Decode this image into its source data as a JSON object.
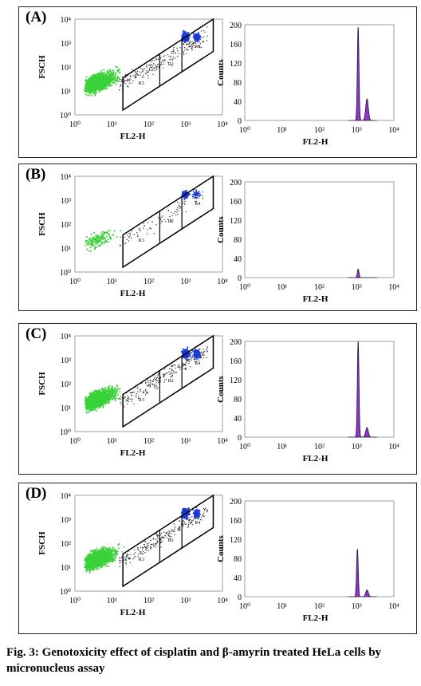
{
  "caption": "Fig. 3: Genotoxicity effect of cisplatin and β-amyrin treated HeLa cells by micronucleus assay",
  "colors": {
    "green": "#3ad13a",
    "blue": "#1a3ad6",
    "black_dots": "#333333",
    "histogram_fill": "#8a38c8",
    "histogram_outline": "#2a1040"
  },
  "chart_data": [
    {
      "panel": "(A)",
      "type": "scatter",
      "xlabel": "FL2-H",
      "ylabel": "FSCH",
      "x_scale": "log",
      "y_scale": "log",
      "xlim": [
        1,
        10000
      ],
      "ylim": [
        1,
        10000
      ],
      "x_ticks": [
        "10⁰",
        "10¹",
        "10²",
        "10³",
        "10⁴"
      ],
      "y_ticks": [
        "10⁰",
        "10¹",
        "10²",
        "10³",
        "10⁴"
      ],
      "gates": [
        "R3",
        "R2",
        "R4"
      ],
      "populations": {
        "green_cluster": "very dense",
        "blue_cluster": "dense"
      }
    },
    {
      "panel": "(A)",
      "type": "area",
      "xlabel": "FL2-H",
      "ylabel": "Counts",
      "x_scale": "log",
      "xlim": [
        1,
        10000
      ],
      "ylim": [
        0,
        200
      ],
      "y_ticks": [
        "0",
        "40",
        "80",
        "120",
        "160",
        "200"
      ],
      "x_ticks": [
        "10⁰",
        "10¹",
        "10²",
        "10³",
        "10⁴"
      ],
      "peaks": [
        {
          "x": 1100,
          "height": 195
        },
        {
          "x": 1900,
          "height": 45
        }
      ]
    },
    {
      "panel": "(B)",
      "type": "scatter",
      "xlabel": "FL2-H",
      "ylabel": "FSCH",
      "x_scale": "log",
      "y_scale": "log",
      "xlim": [
        1,
        10000
      ],
      "ylim": [
        1,
        10000
      ],
      "x_ticks": [
        "10⁰",
        "10¹",
        "10²",
        "10³",
        "10⁴"
      ],
      "y_ticks": [
        "10⁰",
        "10¹",
        "10²",
        "10³",
        "10⁴"
      ],
      "gates": [
        "R3",
        "R2",
        "R4"
      ],
      "populations": {
        "green_cluster": "sparse",
        "blue_cluster": "sparse"
      }
    },
    {
      "panel": "(B)",
      "type": "area",
      "xlabel": "FL2-H",
      "ylabel": "Counts",
      "x_scale": "log",
      "xlim": [
        1,
        10000
      ],
      "ylim": [
        0,
        200
      ],
      "y_ticks": [
        "0",
        "40",
        "80",
        "120",
        "160",
        "200"
      ],
      "x_ticks": [
        "10⁰",
        "10¹",
        "10²",
        "10³",
        "10⁴"
      ],
      "peaks": [
        {
          "x": 1100,
          "height": 18
        }
      ]
    },
    {
      "panel": "(C)",
      "type": "scatter",
      "xlabel": "FL2-H",
      "ylabel": "FSCH",
      "x_scale": "log",
      "y_scale": "log",
      "xlim": [
        1,
        10000
      ],
      "ylim": [
        1,
        10000
      ],
      "x_ticks": [
        "10⁰",
        "10¹",
        "10²",
        "10³",
        "10⁴"
      ],
      "y_ticks": [
        "10⁰",
        "10¹",
        "10²",
        "10³",
        "10⁴"
      ],
      "gates": [
        "R3",
        "R2",
        "R4"
      ],
      "populations": {
        "green_cluster": "very dense",
        "blue_cluster": "dense"
      }
    },
    {
      "panel": "(C)",
      "type": "area",
      "xlabel": "FL2-H",
      "ylabel": "Counts",
      "x_scale": "log",
      "xlim": [
        1,
        10000
      ],
      "ylim": [
        0,
        200
      ],
      "y_ticks": [
        "0",
        "40",
        "80",
        "120",
        "160",
        "200"
      ],
      "x_ticks": [
        "10⁰",
        "10¹",
        "10²",
        "10³",
        "10⁴"
      ],
      "peaks": [
        {
          "x": 1100,
          "height": 200
        },
        {
          "x": 1900,
          "height": 20
        }
      ]
    },
    {
      "panel": "(D)",
      "type": "scatter",
      "xlabel": "FL2-H",
      "ylabel": "FSCH",
      "x_scale": "log",
      "y_scale": "log",
      "xlim": [
        1,
        10000
      ],
      "ylim": [
        1,
        10000
      ],
      "x_ticks": [
        "10⁰",
        "10¹",
        "10²",
        "10³",
        "10⁴"
      ],
      "y_ticks": [
        "10⁰",
        "10¹",
        "10²",
        "10³",
        "10⁴"
      ],
      "gates": [
        "R3",
        "R2",
        "R4"
      ],
      "populations": {
        "green_cluster": "very dense",
        "blue_cluster": "dense"
      }
    },
    {
      "panel": "(D)",
      "type": "area",
      "xlabel": "FL2-H",
      "ylabel": "Counts",
      "x_scale": "log",
      "xlim": [
        1,
        10000
      ],
      "ylim": [
        0,
        200
      ],
      "y_ticks": [
        "0",
        "40",
        "80",
        "120",
        "160",
        "200"
      ],
      "x_ticks": [
        "10⁰",
        "10¹",
        "10²",
        "10³",
        "10⁴"
      ],
      "peaks": [
        {
          "x": 1050,
          "height": 100
        },
        {
          "x": 1900,
          "height": 14
        }
      ]
    }
  ]
}
